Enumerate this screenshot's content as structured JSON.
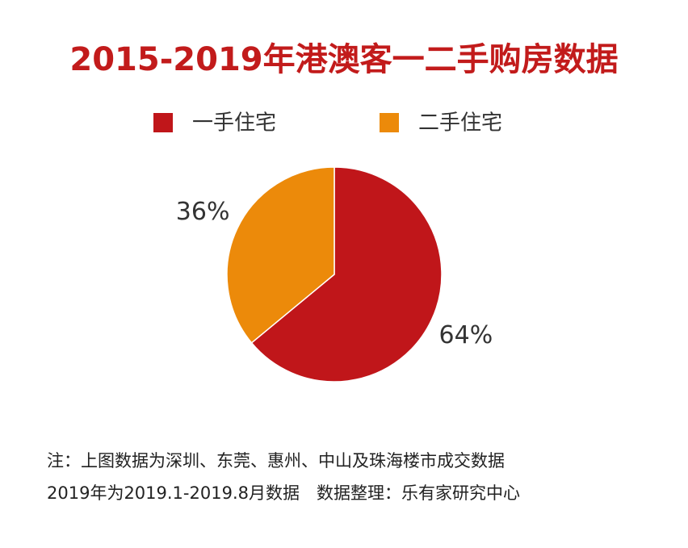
{
  "chart_data": {
    "type": "pie",
    "title": "2015-2019年港澳客一二手购房数据",
    "categories": [
      "一手住宅",
      "二手住宅"
    ],
    "values": [
      64,
      36
    ],
    "value_labels": [
      "64%",
      "36%"
    ],
    "colors": [
      "#c0161a",
      "#ec8a0a"
    ],
    "legend": "top",
    "notes": [
      "注：上图数据为深圳、东莞、惠州、中山及珠海楼市成交数据",
      "2019年为2019.1-2019.8月数据　数据整理：乐有家研究中心"
    ]
  }
}
